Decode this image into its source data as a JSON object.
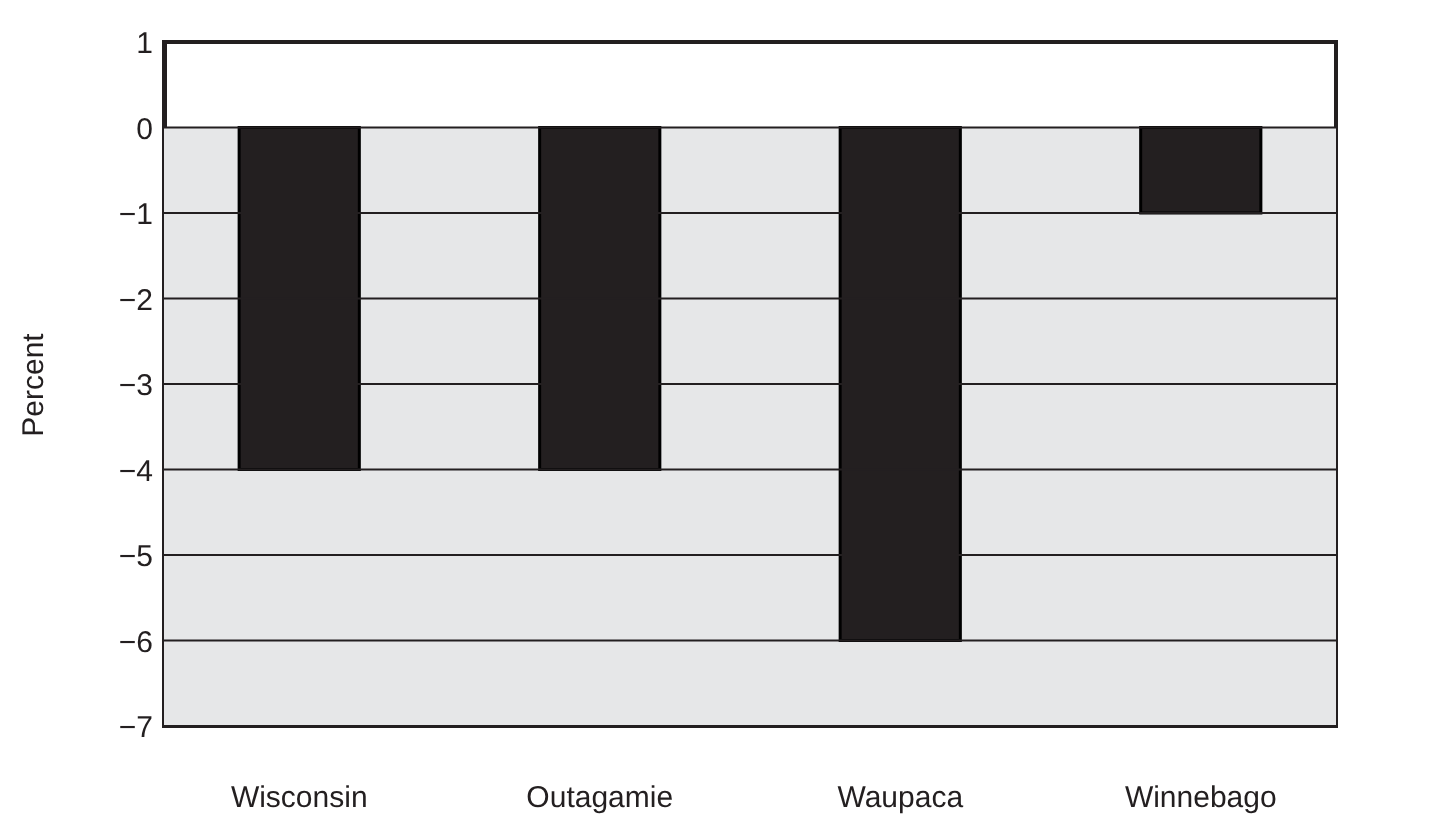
{
  "chart_data": {
    "type": "bar",
    "ylabel": "Percent",
    "categories": [
      "Wisconsin",
      "Outagamie",
      "Waupaca",
      "Winnebago"
    ],
    "values": [
      -4,
      -4,
      -6,
      -1
    ],
    "color": "#231f20",
    "ylim": [
      -7,
      1
    ],
    "yticks": [
      -7,
      -6,
      -5,
      -4,
      -3,
      -2,
      -1,
      0,
      1
    ],
    "grid": "y",
    "bands": [
      {
        "axis": "y",
        "from": -7,
        "to": 0,
        "color": "#e6e7e8"
      }
    ]
  }
}
